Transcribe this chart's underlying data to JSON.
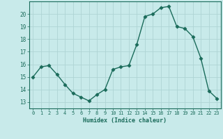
{
  "x": [
    0,
    1,
    2,
    3,
    4,
    5,
    6,
    7,
    8,
    9,
    10,
    11,
    12,
    13,
    14,
    15,
    16,
    17,
    18,
    19,
    20,
    21,
    22,
    23
  ],
  "y": [
    15.0,
    15.8,
    15.9,
    15.2,
    14.4,
    13.7,
    13.4,
    13.1,
    13.6,
    14.0,
    15.6,
    15.8,
    15.9,
    17.6,
    19.8,
    20.0,
    20.5,
    20.6,
    19.0,
    18.85,
    18.2,
    16.5,
    13.9,
    13.3
  ],
  "xlabel": "Humidex (Indice chaleur)",
  "ylim": [
    12.5,
    21.0
  ],
  "xlim": [
    -0.5,
    23.5
  ],
  "yticks": [
    13,
    14,
    15,
    16,
    17,
    18,
    19,
    20
  ],
  "xticks": [
    0,
    1,
    2,
    3,
    4,
    5,
    6,
    7,
    8,
    9,
    10,
    11,
    12,
    13,
    14,
    15,
    16,
    17,
    18,
    19,
    20,
    21,
    22,
    23
  ],
  "line_color": "#1a6b5a",
  "marker": "D",
  "marker_size": 2.5,
  "bg_color": "#c8eaea",
  "grid_color": "#aed4d4",
  "tick_color": "#1a6b5a",
  "label_color": "#1a6b5a",
  "spine_color": "#1a6b5a"
}
